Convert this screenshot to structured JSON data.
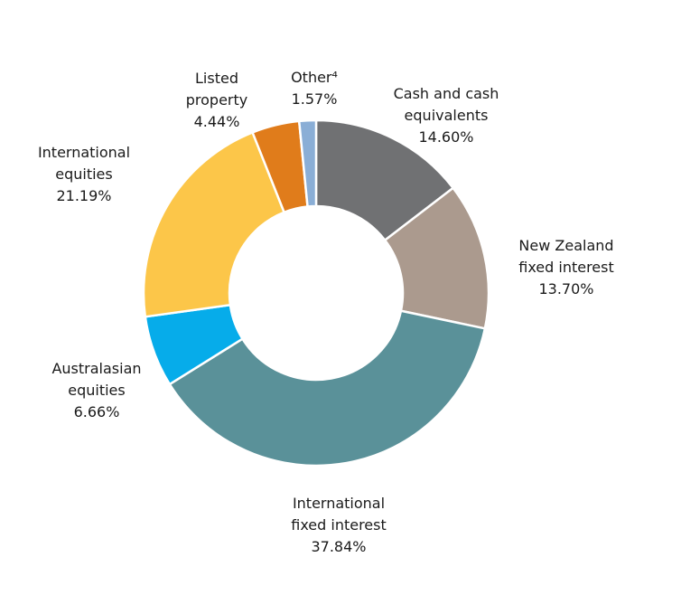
{
  "chart_data": {
    "type": "pie",
    "subtype": "donut",
    "title": "",
    "legend_position": "none",
    "direction": "clockwise",
    "start_angle_deg": 0,
    "donut_hole_ratio": 0.5,
    "total": 100,
    "series": [
      {
        "key": "cash-and-cash-equivalents",
        "label": "Cash and cash equivalents",
        "label_lines": [
          "Cash and cash",
          "equivalents"
        ],
        "value": 14.6,
        "display_value": "14.60%",
        "color": "#707173"
      },
      {
        "key": "new-zealand-fixed-interest",
        "label": "New Zealand fixed interest",
        "label_lines": [
          "New Zealand",
          "fixed interest"
        ],
        "value": 13.7,
        "display_value": "13.70%",
        "color": "#AB9A8E"
      },
      {
        "key": "international-fixed-interest",
        "label": "International fixed interest",
        "label_lines": [
          "International",
          "fixed interest"
        ],
        "value": 37.84,
        "display_value": "37.84%",
        "color": "#5A9199"
      },
      {
        "key": "australasian-equities",
        "label": "Australasian equities",
        "label_lines": [
          "Australasian",
          "equities"
        ],
        "value": 6.66,
        "display_value": "6.66%",
        "color": "#06ACEA"
      },
      {
        "key": "international-equities",
        "label": "International equities",
        "label_lines": [
          "International",
          "equities"
        ],
        "value": 21.19,
        "display_value": "21.19%",
        "color": "#FCC649"
      },
      {
        "key": "listed-property",
        "label": "Listed property",
        "label_lines": [
          "Listed",
          "property"
        ],
        "value": 4.44,
        "display_value": "4.44%",
        "color": "#E07C1B"
      },
      {
        "key": "other",
        "label": "Other⁴",
        "label_lines": [
          "Other⁴"
        ],
        "value": 1.57,
        "display_value": "1.57%",
        "color": "#8AAED6"
      }
    ],
    "colors": {
      "separator": "#FFFFFF",
      "label_text": "#1A1A1A",
      "background": "#FFFFFF"
    }
  }
}
